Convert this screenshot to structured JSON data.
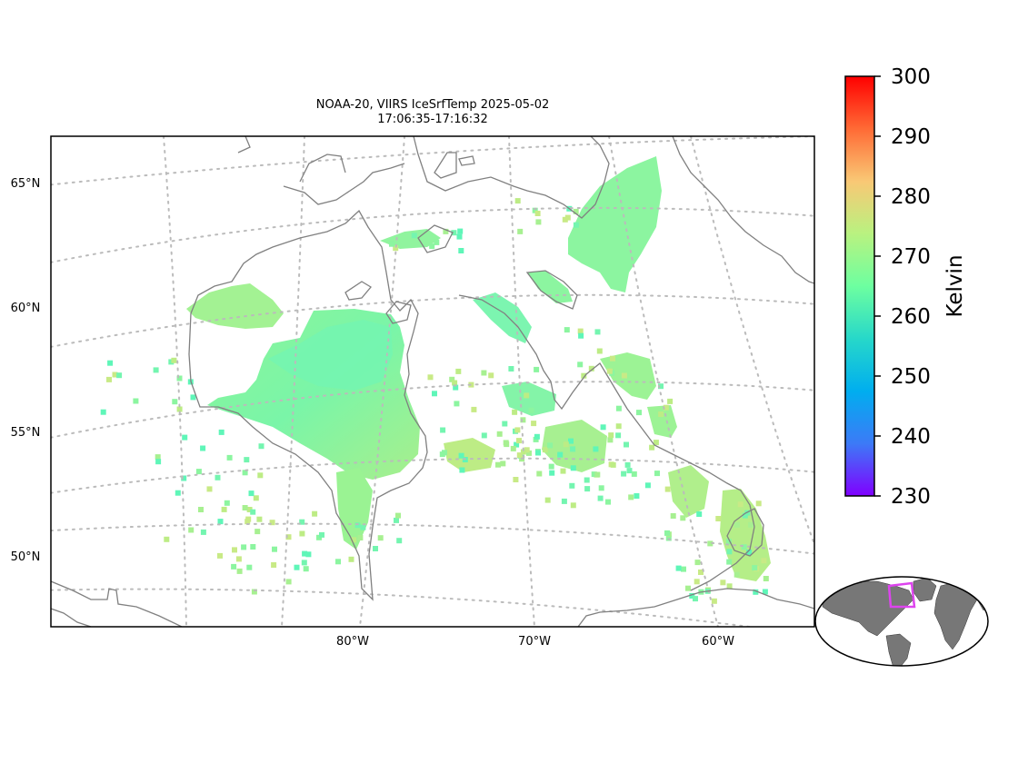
{
  "title": {
    "line1": "NOAA-20, VIIRS IceSrfTemp 2025-05-02",
    "line2": "17:06:35-17:16:32"
  },
  "map": {
    "lat_labels": [
      "65°N",
      "60°N",
      "55°N",
      "50°N"
    ],
    "lon_labels": [
      "80°W",
      "70°W",
      "60°W"
    ],
    "graticule_color": "#bbbbbb",
    "coast_color": "#808080"
  },
  "colorbar": {
    "label": "Kelvin",
    "min": 230,
    "max": 300,
    "ticks": [
      "300",
      "290",
      "280",
      "270",
      "260",
      "250",
      "240",
      "230"
    ],
    "colors": [
      "#ff0000",
      "#ff6a35",
      "#f9c875",
      "#b9f280",
      "#6dffa0",
      "#27d8c9",
      "#00aeef",
      "#3c7af7",
      "#8000ff"
    ]
  },
  "inset": {
    "land_color": "#777777",
    "box_color": "#dd44ee"
  }
}
